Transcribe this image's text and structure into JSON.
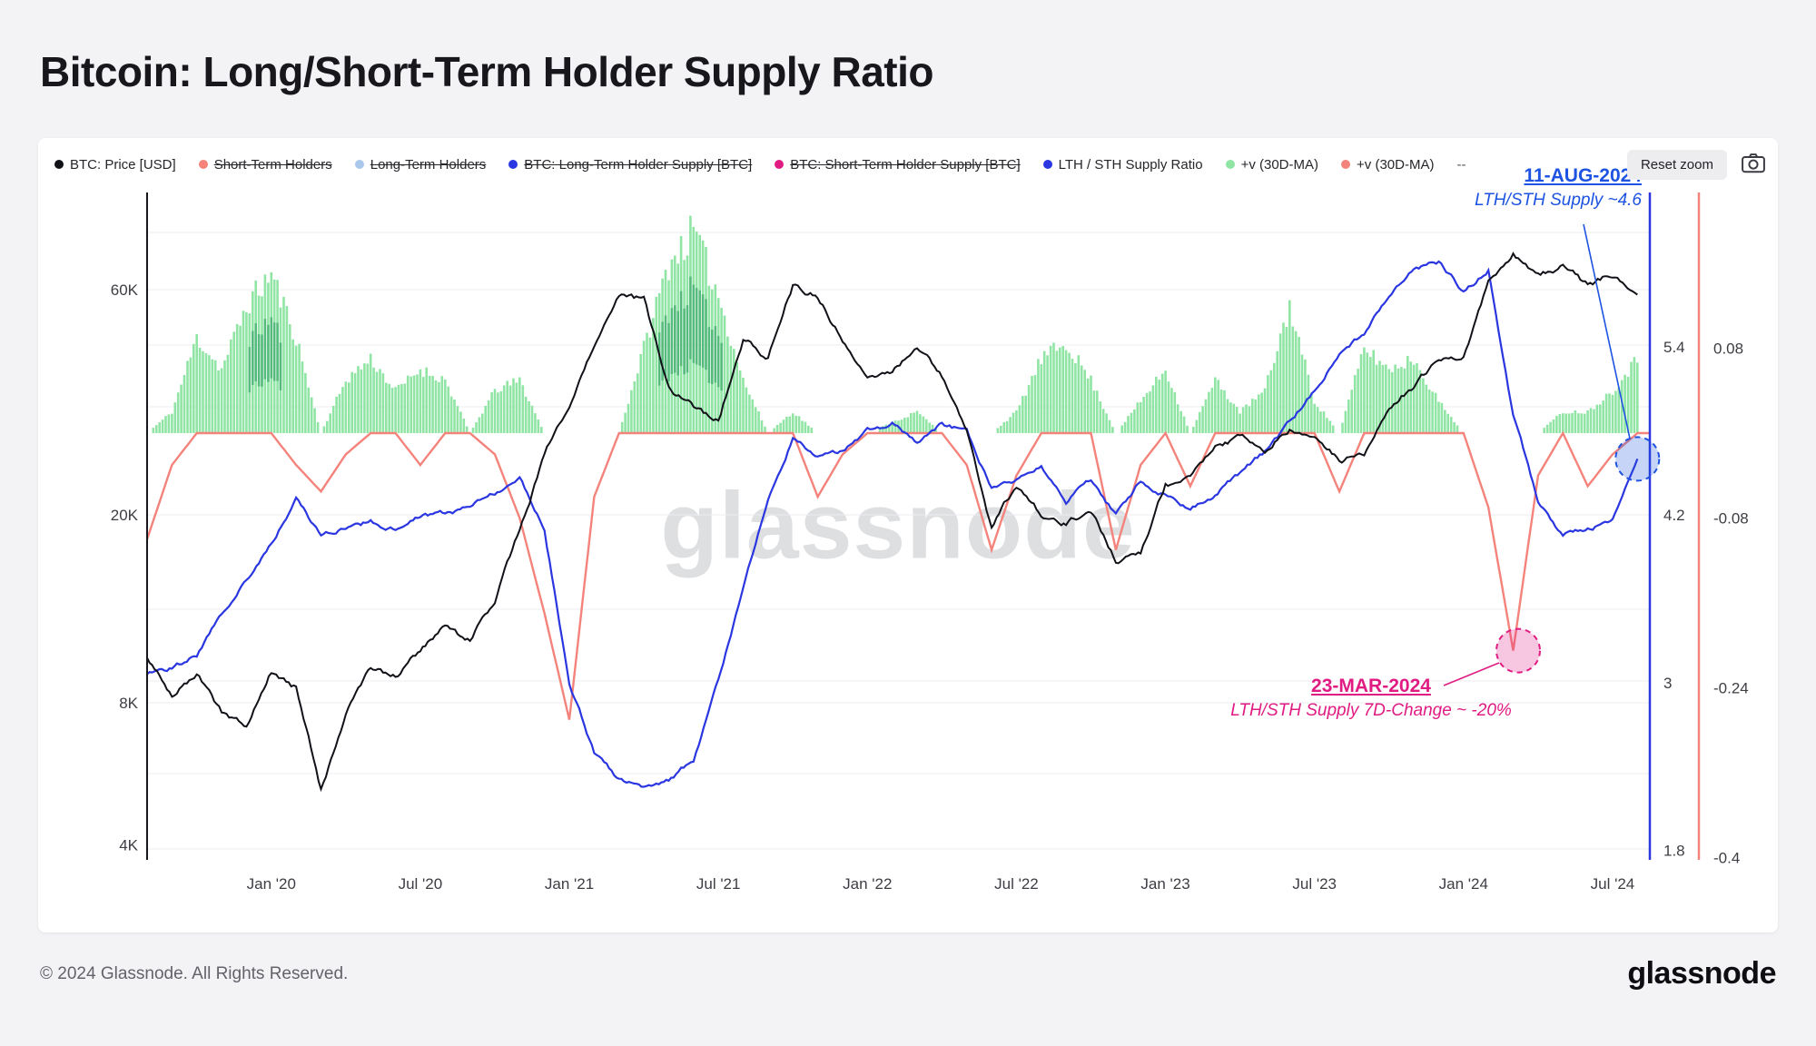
{
  "page": {
    "title": "Bitcoin: Long/Short-Term Holder Supply Ratio",
    "watermark": "glassnode",
    "footer_copyright": "© 2024 Glassnode. All Rights Reserved.",
    "footer_logo": "glassnode"
  },
  "toolbar": {
    "reset_zoom_label": "Reset zoom",
    "icons": {
      "camera": "camera-icon"
    }
  },
  "legend": {
    "items": [
      {
        "label": "BTC: Price [USD]",
        "color": "#111118",
        "struck": false
      },
      {
        "label": "Short-Term Holders",
        "color": "#f4837b",
        "struck": true
      },
      {
        "label": "Long-Term Holders",
        "color": "#aac8ec",
        "struck": true
      },
      {
        "label": "BTC: Long-Term Holder Supply [BTC]",
        "color": "#2a36e0",
        "struck": true
      },
      {
        "label": "BTC: Short-Term Holder Supply [BTC]",
        "color": "#e01c82",
        "struck": true
      },
      {
        "label": "LTH / STH Supply Ratio",
        "color": "#2a36e0",
        "struck": false
      },
      {
        "label": "+v (30D-MA)",
        "color": "#90e5a5",
        "struck": false
      },
      {
        "label": "+v (30D-MA)",
        "color": "#f4837b",
        "struck": false
      },
      {
        "label": "--",
        "color": null,
        "struck": false
      }
    ]
  },
  "chart_data": {
    "type": "line",
    "title": "Bitcoin: Long/Short-Term Holder Supply Ratio",
    "x_unit": "month",
    "x_range": [
      "2019-08",
      "2024-08"
    ],
    "x_tick_labels": [
      {
        "month_index": 5,
        "label": "Jan '20"
      },
      {
        "month_index": 11,
        "label": "Jul '20"
      },
      {
        "month_index": 17,
        "label": "Jan '21"
      },
      {
        "month_index": 23,
        "label": "Jul '21"
      },
      {
        "month_index": 29,
        "label": "Jan '22"
      },
      {
        "month_index": 35,
        "label": "Jul '22"
      },
      {
        "month_index": 41,
        "label": "Jan '23"
      },
      {
        "month_index": 47,
        "label": "Jul '23"
      },
      {
        "month_index": 53,
        "label": "Jan '24"
      },
      {
        "month_index": 59,
        "label": "Jul '24"
      }
    ],
    "axes": {
      "price_left": {
        "scale": "log",
        "ticks": [
          {
            "value": 60000,
            "label": "60K"
          },
          {
            "value": 20000,
            "label": "20K"
          },
          {
            "value": 8000,
            "label": "8K"
          },
          {
            "value": 4000,
            "label": "4K"
          }
        ]
      },
      "ratio_right": {
        "scale": "linear",
        "color": "#2a36e0",
        "ticks": [
          {
            "value": 5.4,
            "label": "5.4"
          },
          {
            "value": 4.2,
            "label": "4.2"
          },
          {
            "value": 3,
            "label": "3"
          },
          {
            "value": 1.8,
            "label": "1.8"
          }
        ]
      },
      "change_far_right": {
        "scale": "linear",
        "color": "#f4837b",
        "ticks": [
          {
            "value": 0.08,
            "label": "0.08"
          },
          {
            "value": -0.08,
            "label": "-0.08"
          },
          {
            "value": -0.24,
            "label": "-0.24"
          },
          {
            "value": -0.4,
            "label": "-0.4"
          }
        ]
      }
    },
    "series": [
      {
        "id": "price",
        "name": "BTC: Price [USD]",
        "axis": "price_left",
        "style": "line",
        "color": "#111118",
        "values": [
          10000,
          8300,
          9200,
          7600,
          7200,
          9300,
          8600,
          5200,
          7700,
          9400,
          9100,
          10300,
          11600,
          10800,
          13200,
          18500,
          27000,
          34000,
          45000,
          58000,
          57000,
          37000,
          34000,
          31500,
          47000,
          43000,
          61000,
          58000,
          47000,
          38500,
          40000,
          45500,
          39000,
          30000,
          18800,
          23000,
          20000,
          19300,
          20500,
          16000,
          16600,
          23100,
          23500,
          28400,
          29300,
          27200,
          30500,
          29300,
          26100,
          26900,
          34500,
          37700,
          42300,
          42600,
          61500,
          71000,
          63800,
          67500,
          61000,
          64500,
          58500
        ]
      },
      {
        "id": "ratio",
        "name": "LTH / STH Supply Ratio",
        "axis": "ratio_right",
        "style": "line",
        "color": "#2a36e0",
        "values": [
          3.05,
          3.1,
          3.2,
          3.5,
          3.75,
          4.0,
          4.3,
          4.05,
          4.1,
          4.15,
          4.1,
          4.2,
          4.2,
          4.25,
          4.35,
          4.45,
          4.1,
          3.0,
          2.5,
          2.3,
          2.25,
          2.3,
          2.45,
          3.0,
          3.7,
          4.3,
          4.75,
          4.6,
          4.65,
          4.8,
          4.85,
          4.7,
          4.85,
          4.8,
          4.4,
          4.45,
          4.55,
          4.3,
          4.45,
          4.2,
          4.45,
          4.35,
          4.25,
          4.35,
          4.5,
          4.65,
          4.85,
          5.1,
          5.35,
          5.5,
          5.75,
          5.95,
          6.0,
          5.8,
          5.95,
          4.9,
          4.3,
          4.05,
          4.1,
          4.15,
          4.6
        ]
      },
      {
        "id": "pos_change",
        "name": "+v (30D-MA)",
        "axis": "change_far_right",
        "style": "histogram",
        "color": "#90e5a5",
        "values": [
          0,
          0.02,
          0.09,
          0.06,
          0.12,
          0.15,
          0.09,
          0,
          0.05,
          0.07,
          0.04,
          0.06,
          0.05,
          0,
          0.04,
          0.05,
          0,
          0,
          0,
          0,
          0.08,
          0.16,
          0.19,
          0.13,
          0.05,
          0,
          0.02,
          0,
          0,
          0,
          0.01,
          0.02,
          0,
          0,
          0,
          0.02,
          0.07,
          0.085,
          0.05,
          0,
          0.03,
          0.06,
          0,
          0.05,
          0.02,
          0.04,
          0.12,
          0.03,
          0,
          0.08,
          0.06,
          0.07,
          0.03,
          0,
          0,
          0,
          0,
          0.02,
          0.02,
          0.04,
          0.07
        ]
      },
      {
        "id": "neg_change",
        "name": "+v (30D-MA)",
        "axis": "change_far_right",
        "style": "line",
        "color": "#f4837b",
        "values": [
          -0.1,
          -0.03,
          0,
          0,
          0,
          0,
          -0.03,
          -0.055,
          -0.02,
          0,
          0,
          -0.03,
          0,
          0,
          -0.02,
          -0.08,
          -0.17,
          -0.27,
          -0.06,
          0,
          0,
          0,
          0,
          0,
          0,
          0,
          0,
          -0.06,
          -0.02,
          0,
          0,
          0,
          0,
          -0.03,
          -0.11,
          -0.04,
          0,
          0,
          0,
          -0.11,
          -0.03,
          0,
          -0.05,
          0,
          0,
          0,
          0,
          0,
          -0.055,
          0,
          0,
          0,
          0,
          0,
          -0.07,
          -0.205,
          -0.04,
          0,
          -0.05,
          -0.02,
          0
        ]
      }
    ],
    "annotations": [
      {
        "id": "aug-2024",
        "date_label": "11-AUG-2024",
        "text": "LTH/STH Supply ~4.6",
        "color": "#1d53e0",
        "marker": {
          "month_index": 60,
          "axis": "ratio_right",
          "value": 4.6
        }
      },
      {
        "id": "mar-2024",
        "date_label": "23-MAR-2024",
        "text": "LTH/STH Supply 7D-Change ~ -20%",
        "color": "#e01c82",
        "marker": {
          "month_index": 55.2,
          "axis": "change_far_right",
          "value": -0.205
        }
      }
    ]
  }
}
